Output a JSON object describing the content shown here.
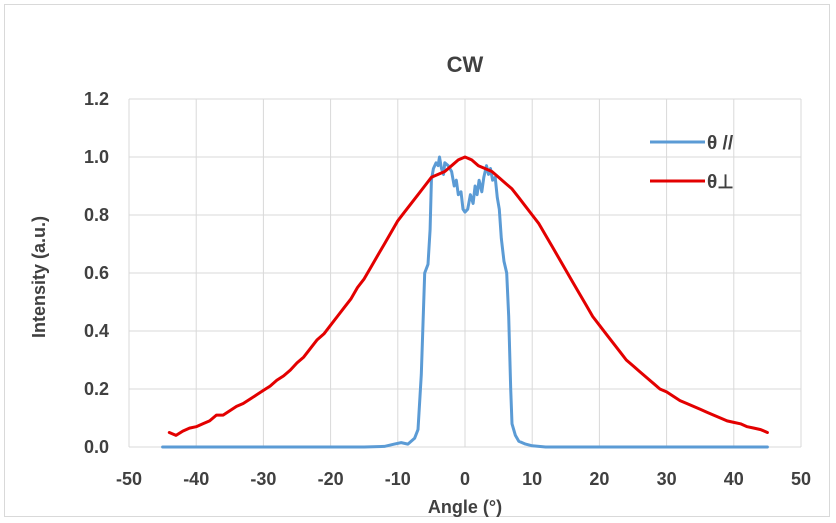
{
  "chart_data": {
    "type": "line",
    "title": "CW",
    "xlabel": "Angle (°)",
    "ylabel": "Intensity (a.u.)",
    "xlim": [
      -50,
      50
    ],
    "ylim": [
      0.0,
      1.2
    ],
    "xticks": [
      "-50",
      "-40",
      "-30",
      "-20",
      "-10",
      "0",
      "10",
      "20",
      "30",
      "40",
      "50"
    ],
    "yticks": [
      "0.0",
      "0.2",
      "0.4",
      "0.6",
      "0.8",
      "1.0",
      "1.2"
    ],
    "grid": true,
    "legend_position": "top-right",
    "series": [
      {
        "name": "θ //",
        "color": "#5b9bd5",
        "points": [
          [
            -45,
            0.0
          ],
          [
            -30,
            0.0
          ],
          [
            -20,
            0.0
          ],
          [
            -15,
            0.0
          ],
          [
            -12,
            0.002
          ],
          [
            -10.5,
            0.01
          ],
          [
            -9.5,
            0.015
          ],
          [
            -8.5,
            0.01
          ],
          [
            -7.5,
            0.03
          ],
          [
            -7,
            0.06
          ],
          [
            -6.5,
            0.25
          ],
          [
            -6,
            0.6
          ],
          [
            -5.5,
            0.63
          ],
          [
            -5.2,
            0.75
          ],
          [
            -5,
            0.92
          ],
          [
            -4.7,
            0.96
          ],
          [
            -4.3,
            0.98
          ],
          [
            -4,
            0.97
          ],
          [
            -3.8,
            1.0
          ],
          [
            -3.5,
            0.96
          ],
          [
            -3.2,
            0.94
          ],
          [
            -3,
            0.98
          ],
          [
            -2.5,
            0.97
          ],
          [
            -2,
            0.95
          ],
          [
            -1.6,
            0.9
          ],
          [
            -1.3,
            0.92
          ],
          [
            -1,
            0.87
          ],
          [
            -0.6,
            0.88
          ],
          [
            -0.3,
            0.82
          ],
          [
            0,
            0.81
          ],
          [
            0.4,
            0.82
          ],
          [
            0.8,
            0.87
          ],
          [
            1.2,
            0.84
          ],
          [
            1.5,
            0.9
          ],
          [
            1.8,
            0.87
          ],
          [
            2.1,
            0.92
          ],
          [
            2.5,
            0.88
          ],
          [
            2.8,
            0.93
          ],
          [
            3.2,
            0.97
          ],
          [
            3.5,
            0.94
          ],
          [
            3.8,
            0.96
          ],
          [
            4.1,
            0.92
          ],
          [
            4.5,
            0.93
          ],
          [
            4.8,
            0.86
          ],
          [
            5.1,
            0.82
          ],
          [
            5.4,
            0.72
          ],
          [
            5.8,
            0.64
          ],
          [
            6.2,
            0.6
          ],
          [
            6.5,
            0.45
          ],
          [
            6.8,
            0.2
          ],
          [
            7,
            0.08
          ],
          [
            7.5,
            0.04
          ],
          [
            8,
            0.02
          ],
          [
            9,
            0.01
          ],
          [
            10,
            0.004
          ],
          [
            12,
            0.0
          ],
          [
            20,
            0.0
          ],
          [
            30,
            0.0
          ],
          [
            40,
            0.0
          ],
          [
            45,
            0.0
          ]
        ]
      },
      {
        "name": "θ⊥",
        "color": "#e30000",
        "points": [
          [
            -44,
            0.05
          ],
          [
            -43,
            0.04
          ],
          [
            -42,
            0.055
          ],
          [
            -41,
            0.065
          ],
          [
            -40,
            0.07
          ],
          [
            -39,
            0.08
          ],
          [
            -38,
            0.09
          ],
          [
            -37,
            0.11
          ],
          [
            -36,
            0.11
          ],
          [
            -35,
            0.125
          ],
          [
            -34,
            0.14
          ],
          [
            -33,
            0.15
          ],
          [
            -32,
            0.165
          ],
          [
            -31,
            0.18
          ],
          [
            -30,
            0.195
          ],
          [
            -29,
            0.21
          ],
          [
            -28,
            0.23
          ],
          [
            -27,
            0.245
          ],
          [
            -26,
            0.265
          ],
          [
            -25,
            0.29
          ],
          [
            -24,
            0.31
          ],
          [
            -23,
            0.34
          ],
          [
            -22,
            0.37
          ],
          [
            -21,
            0.39
          ],
          [
            -20,
            0.42
          ],
          [
            -19,
            0.45
          ],
          [
            -18,
            0.48
          ],
          [
            -17,
            0.51
          ],
          [
            -16,
            0.55
          ],
          [
            -15,
            0.58
          ],
          [
            -14,
            0.62
          ],
          [
            -13,
            0.66
          ],
          [
            -12,
            0.7
          ],
          [
            -11,
            0.74
          ],
          [
            -10,
            0.78
          ],
          [
            -9,
            0.81
          ],
          [
            -8,
            0.84
          ],
          [
            -7,
            0.87
          ],
          [
            -6,
            0.9
          ],
          [
            -5,
            0.93
          ],
          [
            -4,
            0.94
          ],
          [
            -3,
            0.95
          ],
          [
            -2,
            0.97
          ],
          [
            -1,
            0.99
          ],
          [
            0,
            1.0
          ],
          [
            1,
            0.99
          ],
          [
            2,
            0.97
          ],
          [
            3,
            0.96
          ],
          [
            4,
            0.95
          ],
          [
            5,
            0.93
          ],
          [
            6,
            0.91
          ],
          [
            7,
            0.89
          ],
          [
            8,
            0.86
          ],
          [
            9,
            0.83
          ],
          [
            10,
            0.8
          ],
          [
            11,
            0.77
          ],
          [
            12,
            0.73
          ],
          [
            13,
            0.69
          ],
          [
            14,
            0.65
          ],
          [
            15,
            0.61
          ],
          [
            16,
            0.57
          ],
          [
            17,
            0.53
          ],
          [
            18,
            0.49
          ],
          [
            19,
            0.45
          ],
          [
            20,
            0.42
          ],
          [
            21,
            0.39
          ],
          [
            22,
            0.36
          ],
          [
            23,
            0.33
          ],
          [
            24,
            0.3
          ],
          [
            25,
            0.28
          ],
          [
            26,
            0.26
          ],
          [
            27,
            0.24
          ],
          [
            28,
            0.22
          ],
          [
            29,
            0.2
          ],
          [
            30,
            0.19
          ],
          [
            31,
            0.175
          ],
          [
            32,
            0.16
          ],
          [
            33,
            0.15
          ],
          [
            34,
            0.14
          ],
          [
            35,
            0.13
          ],
          [
            36,
            0.12
          ],
          [
            37,
            0.11
          ],
          [
            38,
            0.1
          ],
          [
            39,
            0.09
          ],
          [
            40,
            0.085
          ],
          [
            41,
            0.08
          ],
          [
            42,
            0.07
          ],
          [
            43,
            0.065
          ],
          [
            44,
            0.06
          ],
          [
            45,
            0.05
          ]
        ]
      }
    ]
  }
}
